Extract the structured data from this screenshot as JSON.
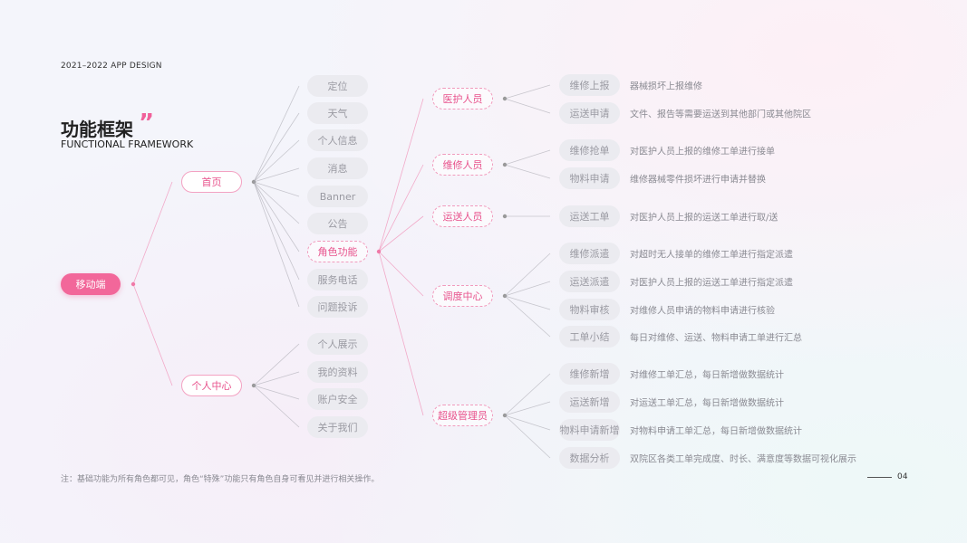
{
  "header": {
    "year_label": "2021–2022 APP DESIGN",
    "title": "功能框架",
    "subtitle": "FUNCTIONAL FRAMEWORK",
    "quote_icon": "quote-mark-icon"
  },
  "colors": {
    "accent": "#f2679a",
    "line_gray": "#a0a0a8",
    "line_pink": "#f07aa8"
  },
  "root": {
    "label": "移动端"
  },
  "branches": [
    {
      "label": "首页",
      "children": [
        "定位",
        "天气",
        "个人信息",
        "消息",
        "Banner",
        "公告",
        "角色功能",
        "服务电话",
        "问题投诉"
      ]
    },
    {
      "label": "个人中心",
      "children": [
        "个人展示",
        "我的资料",
        "账户安全",
        "关于我们"
      ]
    }
  ],
  "role_parent": "角色功能",
  "roles": [
    {
      "label": "医护人员",
      "items": [
        {
          "name": "维修上报",
          "desc": "器械损坏上报维修"
        },
        {
          "name": "运送申请",
          "desc": "文件、报告等需要运送到其他部门或其他院区"
        }
      ]
    },
    {
      "label": "维修人员",
      "items": [
        {
          "name": "维修抢单",
          "desc": "对医护人员上报的维修工单进行接单"
        },
        {
          "name": "物料申请",
          "desc": "维修器械零件损坏进行申请并替换"
        }
      ]
    },
    {
      "label": "运送人员",
      "items": [
        {
          "name": "运送工单",
          "desc": "对医护人员上报的运送工单进行取/送"
        }
      ]
    },
    {
      "label": "调度中心",
      "items": [
        {
          "name": "维修派遣",
          "desc": "对超时无人接单的维修工单进行指定派遣"
        },
        {
          "name": "运送派遣",
          "desc": "对医护人员上报的运送工单进行指定派遣"
        },
        {
          "name": "物料审核",
          "desc": "对维修人员申请的物料申请进行核验"
        },
        {
          "name": "工单小结",
          "desc": "每日对维修、运送、物料申请工单进行汇总"
        }
      ]
    },
    {
      "label": "超级管理员",
      "items": [
        {
          "name": "维修新增",
          "desc": "对维修工单汇总，每日新增做数据统计"
        },
        {
          "name": "运送新增",
          "desc": "对运送工单汇总，每日新增做数据统计"
        },
        {
          "name": "物料申请新增",
          "desc": "对物料申请工单汇总，每日新增做数据统计"
        },
        {
          "name": "数据分析",
          "desc": "双院区各类工单完成度、时长、满意度等数据可视化展示"
        }
      ]
    }
  ],
  "footer": {
    "note": "注：基础功能为所有角色都可见，角色“特殊”功能只有角色自身可看见并进行相关操作。",
    "page_number": "04"
  }
}
